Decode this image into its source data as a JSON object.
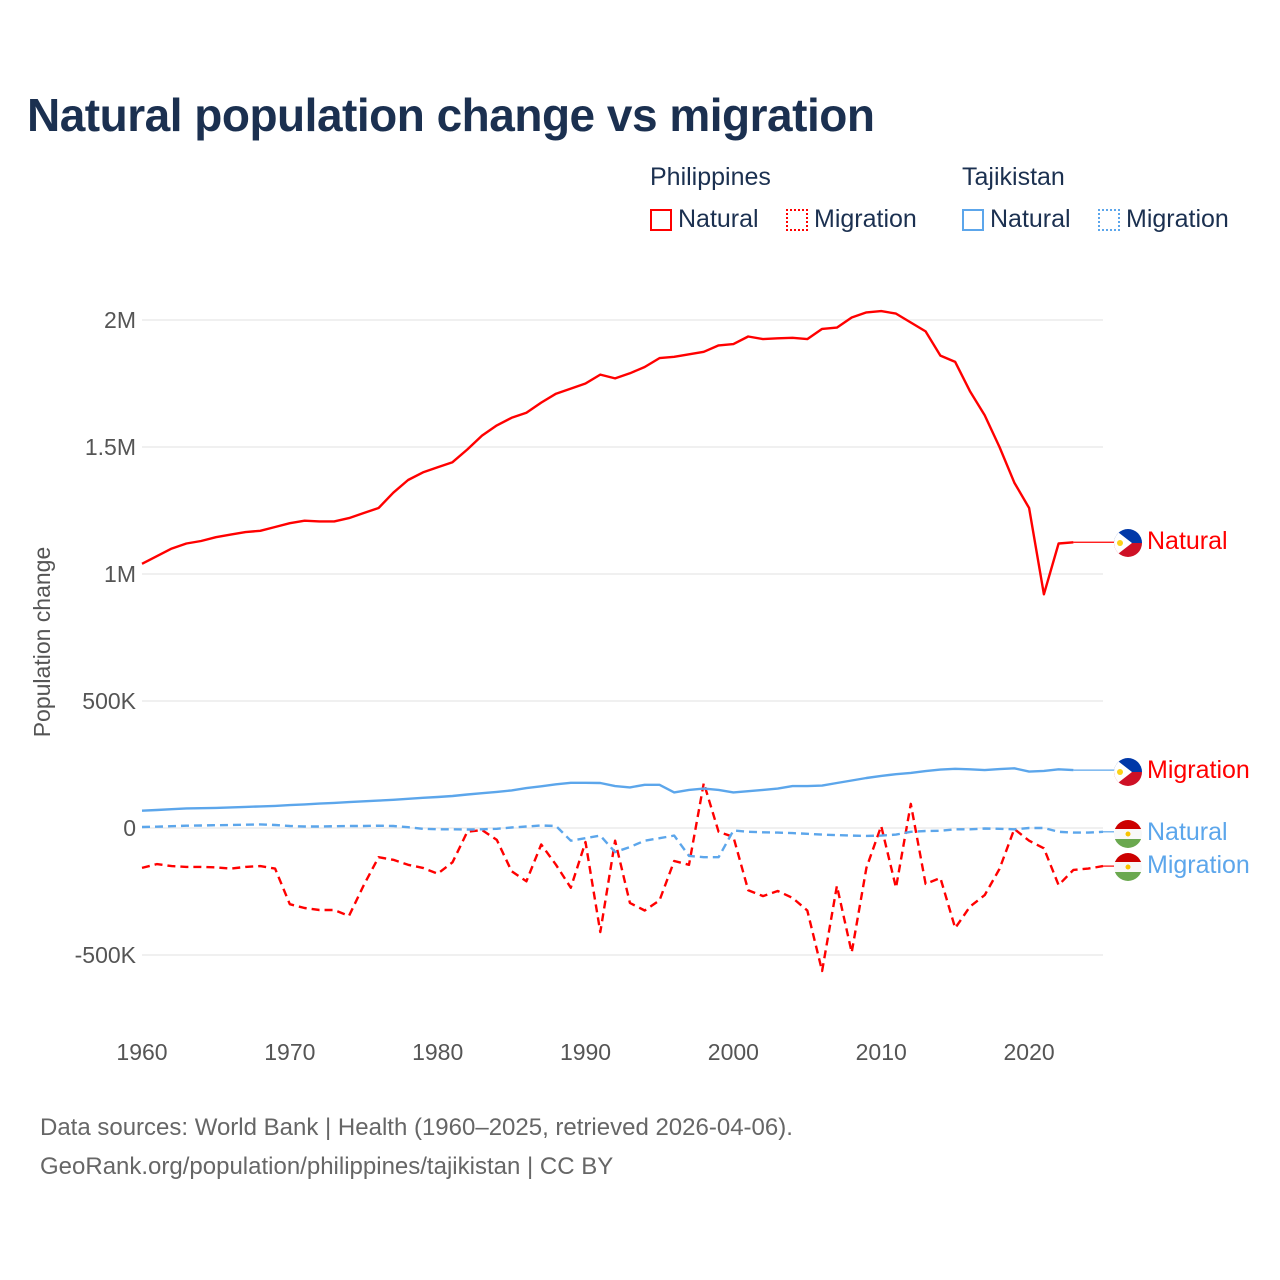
{
  "title": "Natural population change vs migration",
  "legend": {
    "groups": [
      {
        "name": "Philippines",
        "color": "#ff0000",
        "items": [
          "Natural",
          "Migration"
        ]
      },
      {
        "name": "Tajikistan",
        "color": "#5ca6eb",
        "items": [
          "Natural",
          "Migration"
        ]
      }
    ]
  },
  "footer": {
    "line1": "Data sources: World Bank | Health (1960–2025, retrieved 2026-04-06).",
    "line2": "GeoRank.org/population/philippines/tajikistan | CC BY"
  },
  "chart_data": {
    "type": "line",
    "title": "Natural population change vs migration",
    "xlabel": "",
    "ylabel": "Population change",
    "xlim": [
      1960,
      2025
    ],
    "ylim": [
      -650000,
      2150000
    ],
    "x_ticks": [
      1960,
      1970,
      1980,
      1990,
      2000,
      2010,
      2020
    ],
    "x_tick_labels": [
      "1960",
      "1970",
      "1980",
      "1990",
      "2000",
      "2010",
      "2020"
    ],
    "y_ticks": [
      -500000,
      0,
      500000,
      1000000,
      1500000,
      2000000
    ],
    "y_tick_labels": [
      "-500K",
      "0",
      "500K",
      "1M",
      "1.5M",
      "2M"
    ],
    "grid": true,
    "legend_position": "top-right",
    "series": [
      {
        "name": "Philippines Natural",
        "end_label": "Natural",
        "color": "#ff0000",
        "dash": false,
        "start_year": 1960,
        "values": [
          1040000,
          1070000,
          1100000,
          1120000,
          1130000,
          1145000,
          1155000,
          1165000,
          1170000,
          1185000,
          1200000,
          1210000,
          1207000,
          1207000,
          1220000,
          1240000,
          1260000,
          1320000,
          1370000,
          1400000,
          1420000,
          1440000,
          1490000,
          1545000,
          1585000,
          1615000,
          1635000,
          1675000,
          1710000,
          1730000,
          1750000,
          1785000,
          1770000,
          1790000,
          1815000,
          1850000,
          1855000,
          1865000,
          1875000,
          1900000,
          1905000,
          1935000,
          1925000,
          1928000,
          1930000,
          1925000,
          1965000,
          1970000,
          2010000,
          2030000,
          2035000,
          2025000,
          1990000,
          1955000,
          1860000,
          1835000,
          1720000,
          1625000,
          1500000,
          1360000,
          1260000,
          920000,
          1120000,
          1125000
        ]
      },
      {
        "name": "Philippines Migration",
        "end_label": "Migration",
        "color": "#ff0000",
        "dash": true,
        "start_year": 1960,
        "values": [
          -157000,
          -142000,
          -150000,
          -153000,
          -153000,
          -155000,
          -160000,
          -153000,
          -150000,
          -160000,
          -300000,
          -315000,
          -323000,
          -323000,
          -346000,
          -225000,
          -115000,
          -125000,
          -145000,
          -157000,
          -180000,
          -135000,
          -15000,
          -8000,
          -47000,
          -170000,
          -210000,
          -65000,
          -145000,
          -235000,
          -55000,
          -410000,
          -50000,
          -295000,
          -325000,
          -285000,
          -130000,
          -145000,
          177000,
          -15000,
          -35000,
          -245000,
          -268000,
          -248000,
          -275000,
          -325000,
          -563000,
          -228000,
          -490000,
          -157000,
          8000,
          -235000,
          95000,
          -220000,
          -197000,
          -394000,
          -310000,
          -264000,
          -161000,
          -4000,
          -50000,
          -80000,
          -225000,
          -165000,
          -160000,
          -150000
        ]
      },
      {
        "name": "Tajikistan Natural",
        "end_label": "Natural",
        "color": "#5ca6eb",
        "dash": false,
        "start_year": 1960,
        "values": [
          68000,
          71000,
          74000,
          77000,
          78000,
          79000,
          81000,
          83000,
          85000,
          87000,
          90000,
          93000,
          96000,
          99000,
          102000,
          105000,
          108000,
          111000,
          115000,
          119000,
          122000,
          126000,
          132000,
          137000,
          142000,
          148000,
          157000,
          164000,
          172000,
          178000,
          178000,
          177000,
          165000,
          160000,
          170000,
          170000,
          140000,
          150000,
          155000,
          150000,
          140000,
          145000,
          150000,
          155000,
          165000,
          165000,
          167000,
          177000,
          187000,
          197000,
          205000,
          212000,
          217000,
          224000,
          230000,
          233000,
          231000,
          228000,
          232000,
          235000,
          222000,
          225000,
          231000,
          228000
        ]
      },
      {
        "name": "Tajikistan Migration",
        "end_label": "Migration",
        "color": "#5ca6eb",
        "dash": true,
        "start_year": 1960,
        "values": [
          4000,
          5000,
          7000,
          9000,
          10000,
          11000,
          12000,
          13000,
          14000,
          12000,
          8000,
          6000,
          6000,
          7000,
          8000,
          8000,
          9000,
          8000,
          3000,
          -3000,
          -5000,
          -5000,
          -6000,
          -5000,
          -3000,
          2000,
          6000,
          10000,
          8000,
          -50000,
          -40000,
          -30000,
          -95000,
          -75000,
          -50000,
          -40000,
          -30000,
          -110000,
          -115000,
          -115000,
          -10000,
          -15000,
          -17000,
          -18000,
          -20000,
          -23000,
          -26000,
          -28000,
          -30000,
          -31000,
          -30000,
          -26000,
          -15000,
          -12000,
          -11000,
          -5000,
          -5000,
          -2000,
          -3000,
          -5000,
          0,
          0,
          -15000,
          -18000,
          -18000,
          -15000
        ]
      }
    ]
  }
}
